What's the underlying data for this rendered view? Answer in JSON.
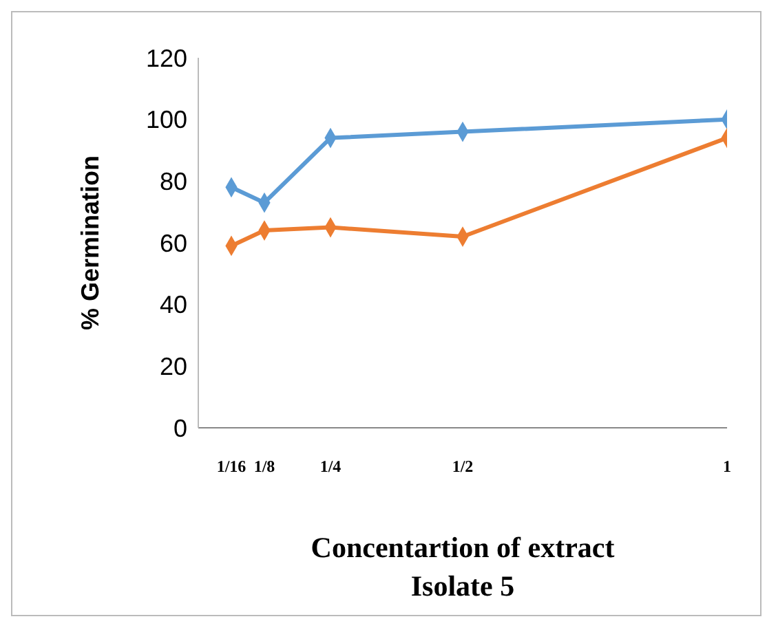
{
  "chart_data": {
    "type": "line",
    "xlabel": "Concentartion of extract",
    "ylabel": "% Germination",
    "annotations": [
      "Isolate 5"
    ],
    "x": [
      0.0625,
      0.125,
      0.25,
      0.5,
      1
    ],
    "xlim": [
      0,
      1
    ],
    "xticks": [
      {
        "value": 0.0625,
        "label": "1/16"
      },
      {
        "value": 0.125,
        "label": "1/8"
      },
      {
        "value": 0.25,
        "label": "1/4"
      },
      {
        "value": 0.5,
        "label": "1/2"
      },
      1
    ],
    "ylim": [
      0,
      120
    ],
    "yticks": [
      0,
      20,
      40,
      60,
      80,
      100,
      120
    ],
    "series": [
      {
        "color": "#5b9bd5",
        "values": [
          78,
          73,
          94,
          96,
          100
        ]
      },
      {
        "color": "#ed7d31",
        "values": [
          59,
          64,
          65,
          62,
          94
        ]
      }
    ],
    "marker": "diamond",
    "line_style": "solid",
    "grid": false,
    "legend": false
  }
}
